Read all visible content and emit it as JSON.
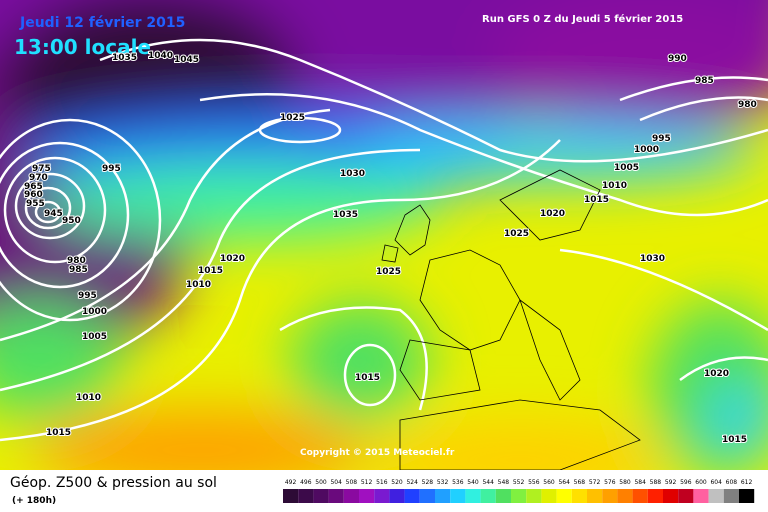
{
  "header": {
    "date": "Jeudi 12 février 2015",
    "time": "13:00 locale",
    "run": "Run GFS 0 Z du Jeudi 5 février 2015"
  },
  "isobar_labels": [
    "1035",
    "1040",
    "1045",
    "1025",
    "1030",
    "1035",
    "975",
    "970",
    "965",
    "960",
    "955",
    "945",
    "950",
    "995",
    "980",
    "985",
    "995",
    "1000",
    "1005",
    "1010",
    "1015",
    "1020",
    "1015",
    "1010",
    "1025",
    "1015",
    "1025",
    "1020",
    "1015",
    "1010",
    "1005",
    "1000",
    "995",
    "990",
    "985",
    "980",
    "1030",
    "1020",
    "1015"
  ],
  "copyright": "Copyright © 2015 Meteociel.fr",
  "footer": {
    "title": "Géop. Z500 & pression au sol",
    "lead": "(+ 180h)"
  },
  "legend": {
    "levels": [
      492,
      496,
      500,
      504,
      508,
      512,
      516,
      520,
      524,
      528,
      532,
      536,
      540,
      544,
      548,
      552,
      556,
      560,
      564,
      568,
      572,
      576,
      580,
      584,
      588,
      592,
      596,
      600,
      604,
      608,
      612
    ],
    "colors": [
      "#2d0b36",
      "#3c0a4a",
      "#4f0a61",
      "#6a0a7d",
      "#8a0aa0",
      "#a010c0",
      "#7a1ad0",
      "#4020e0",
      "#2040ff",
      "#2070ff",
      "#20a0ff",
      "#20d0ff",
      "#30f0e0",
      "#40f0a0",
      "#50e060",
      "#80f040",
      "#b0f020",
      "#e0f000",
      "#ffff00",
      "#ffe000",
      "#ffc000",
      "#ffa000",
      "#ff8000",
      "#ff5000",
      "#ff2000",
      "#e00000",
      "#c00020",
      "#ff60a0",
      "#c0c0c0",
      "#808080",
      "#000000"
    ]
  }
}
